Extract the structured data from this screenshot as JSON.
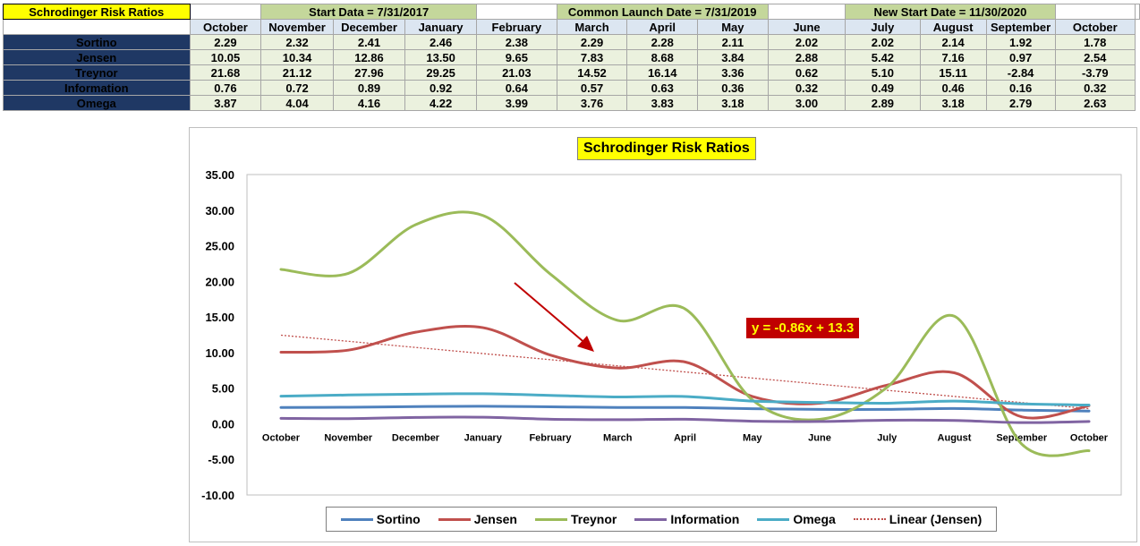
{
  "sheet": {
    "title": "Schrodinger Risk Ratios",
    "bands": [
      "Start Data = 7/31/2017",
      "Common Launch Date = 7/31/2019",
      "New Start Date = 11/30/2020"
    ],
    "months": [
      "October",
      "November",
      "December",
      "January",
      "February",
      "March",
      "April",
      "May",
      "June",
      "July",
      "August",
      "September",
      "October"
    ],
    "rows": [
      {
        "label": "Sortino",
        "values": [
          "2.29",
          "2.32",
          "2.41",
          "2.46",
          "2.38",
          "2.29",
          "2.28",
          "2.11",
          "2.02",
          "2.02",
          "2.14",
          "1.92",
          "1.78"
        ]
      },
      {
        "label": "Jensen",
        "values": [
          "10.05",
          "10.34",
          "12.86",
          "13.50",
          "9.65",
          "7.83",
          "8.68",
          "3.84",
          "2.88",
          "5.42",
          "7.16",
          "0.97",
          "2.54"
        ]
      },
      {
        "label": "Treynor",
        "values": [
          "21.68",
          "21.12",
          "27.96",
          "29.25",
          "21.03",
          "14.52",
          "16.14",
          "3.36",
          "0.62",
          "5.10",
          "15.11",
          "-2.84",
          "-3.79"
        ]
      },
      {
        "label": "Information",
        "values": [
          "0.76",
          "0.72",
          "0.89",
          "0.92",
          "0.64",
          "0.57",
          "0.63",
          "0.36",
          "0.32",
          "0.49",
          "0.46",
          "0.16",
          "0.32"
        ]
      },
      {
        "label": "Omega",
        "values": [
          "3.87",
          "4.04",
          "4.16",
          "4.22",
          "3.99",
          "3.76",
          "3.83",
          "3.18",
          "3.00",
          "2.89",
          "3.18",
          "2.79",
          "2.63"
        ]
      }
    ]
  },
  "chart_data": {
    "type": "line",
    "title": "Schrodinger Risk Ratios",
    "categories": [
      "October",
      "November",
      "December",
      "January",
      "February",
      "March",
      "April",
      "May",
      "June",
      "July",
      "August",
      "September",
      "October"
    ],
    "ylim": [
      -10,
      35
    ],
    "yticks": [
      "35.00",
      "30.00",
      "25.00",
      "20.00",
      "15.00",
      "10.00",
      "5.00",
      "0.00",
      "-5.00",
      "-10.00"
    ],
    "grid": false,
    "legend_position": "bottom",
    "series": [
      {
        "name": "Sortino",
        "color": "#4f81bd",
        "values": [
          2.29,
          2.32,
          2.41,
          2.46,
          2.38,
          2.29,
          2.28,
          2.11,
          2.02,
          2.02,
          2.14,
          1.92,
          1.78
        ]
      },
      {
        "name": "Jensen",
        "color": "#c0504d",
        "values": [
          10.05,
          10.34,
          12.86,
          13.5,
          9.65,
          7.83,
          8.68,
          3.84,
          2.88,
          5.42,
          7.16,
          0.97,
          2.54
        ]
      },
      {
        "name": "Treynor",
        "color": "#9bbb59",
        "values": [
          21.68,
          21.12,
          27.96,
          29.25,
          21.03,
          14.52,
          16.14,
          3.36,
          0.62,
          5.1,
          15.11,
          -2.84,
          -3.79
        ]
      },
      {
        "name": "Information",
        "color": "#8064a2",
        "values": [
          0.76,
          0.72,
          0.89,
          0.92,
          0.64,
          0.57,
          0.63,
          0.36,
          0.32,
          0.49,
          0.46,
          0.16,
          0.32
        ]
      },
      {
        "name": "Omega",
        "color": "#4bacc6",
        "values": [
          3.87,
          4.04,
          4.16,
          4.22,
          3.99,
          3.76,
          3.83,
          3.18,
          3.0,
          2.89,
          3.18,
          2.79,
          2.63
        ]
      }
    ],
    "trendline": {
      "name": "Linear (Jensen)",
      "color": "#c0504d",
      "slope": -0.86,
      "intercept": 13.3,
      "label": "y = -0.86x + 13.3"
    },
    "arrow_color": "#c00000"
  }
}
